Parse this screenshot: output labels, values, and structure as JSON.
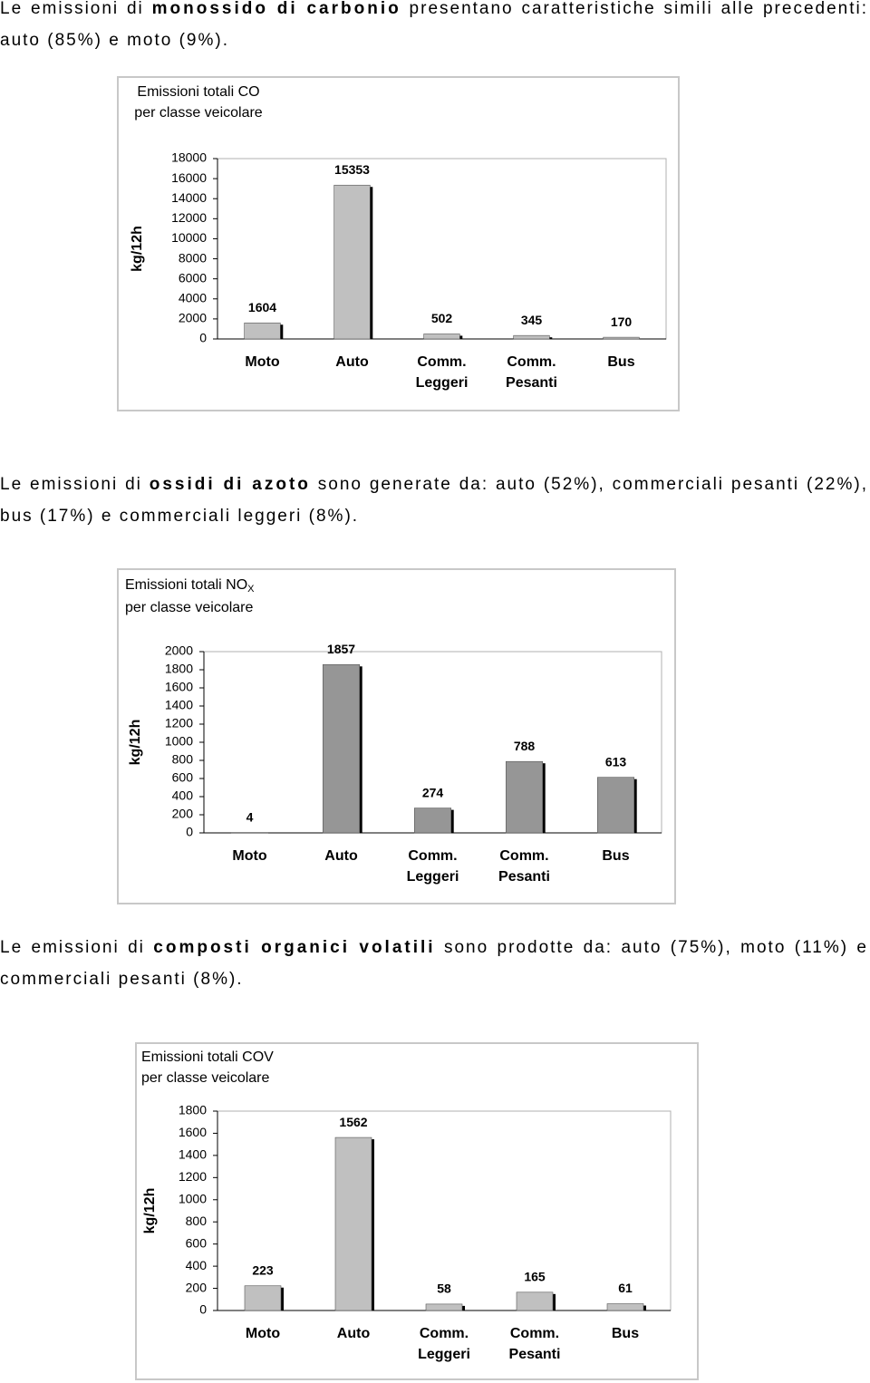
{
  "paragraphs": [
    [
      "Le emissioni di ",
      "monossido di carbonio",
      " presentano caratteristiche simili alle precedenti: auto (85%) e moto (9%)."
    ],
    [
      "Le emissioni di ",
      "ossidi di azoto",
      " sono generate da: auto (52%), commerciali pesanti (22%), bus (17%) e commerciali leggeri (8%)."
    ],
    [
      "Le emissioni di ",
      "composti organici volatili",
      " sono prodotte da: auto (75%), moto (11%) e commerciali pesanti (8%)."
    ]
  ],
  "chart_data": [
    {
      "type": "bar",
      "title": "Emissioni totali CO",
      "subtitle": "per classe veicolare",
      "ylabel": "kg/12h",
      "categories": [
        [
          "Moto"
        ],
        [
          "Auto"
        ],
        [
          "Comm.",
          "Leggeri"
        ],
        [
          "Comm.",
          "Pesanti"
        ],
        [
          "Bus"
        ]
      ],
      "values": [
        1604,
        15353,
        502,
        345,
        170
      ],
      "color": "#c0c0c0",
      "ylim": [
        0,
        18000
      ],
      "yticks": [
        0,
        2000,
        4000,
        6000,
        8000,
        10000,
        12000,
        14000,
        16000,
        18000
      ]
    },
    {
      "type": "bar",
      "title": {
        "main": "Emissioni totali NO",
        "sub": "X"
      },
      "subtitle": "per classe veicolare",
      "ylabel": "kg/12h",
      "categories": [
        [
          "Moto"
        ],
        [
          "Auto"
        ],
        [
          "Comm.",
          "Leggeri"
        ],
        [
          "Comm.",
          "Pesanti"
        ],
        [
          "Bus"
        ]
      ],
      "values": [
        4,
        1857,
        274,
        788,
        613
      ],
      "color": "#969696",
      "ylim": [
        0,
        2000
      ],
      "yticks": [
        0,
        200,
        400,
        600,
        800,
        1000,
        1200,
        1400,
        1600,
        1800,
        2000
      ]
    },
    {
      "type": "bar",
      "title": "Emissioni totali COV",
      "subtitle": "per classe veicolare",
      "ylabel": "kg/12h",
      "categories": [
        [
          "Moto"
        ],
        [
          "Auto"
        ],
        [
          "Comm.",
          "Leggeri"
        ],
        [
          "Comm.",
          "Pesanti"
        ],
        [
          "Bus"
        ]
      ],
      "values": [
        223,
        1562,
        58,
        165,
        61
      ],
      "color": "#c0c0c0",
      "ylim": [
        0,
        1800
      ],
      "yticks": [
        0,
        200,
        400,
        600,
        800,
        1000,
        1200,
        1400,
        1600,
        1800
      ]
    }
  ]
}
